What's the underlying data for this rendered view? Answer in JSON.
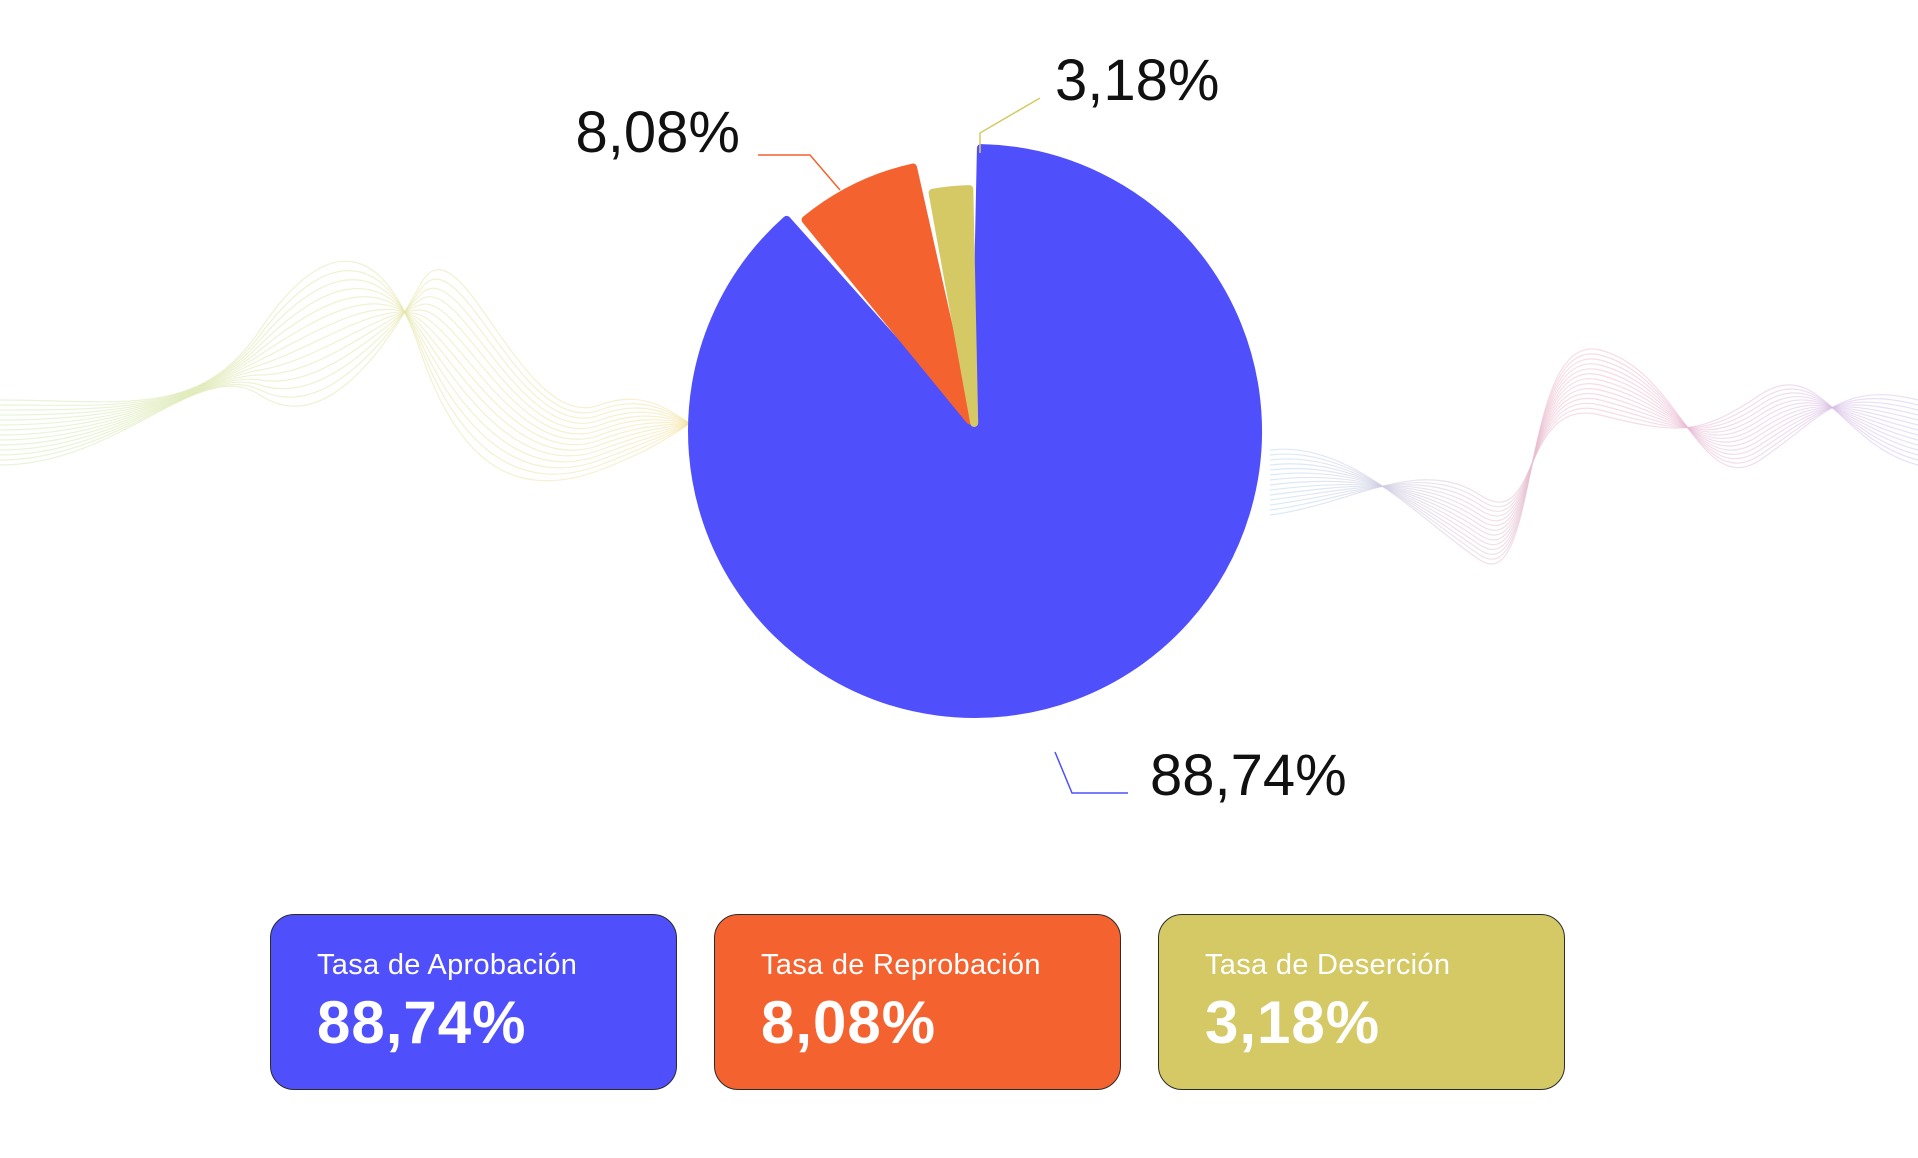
{
  "colors": {
    "aprobacion": "#4f50fb",
    "reprobacion": "#f4622f",
    "desercion": "#d5c965"
  },
  "chart_data": {
    "type": "pie",
    "slices": [
      {
        "label": "Tasa de Aprobación",
        "value": 88.74,
        "display": "88,74%",
        "color": "#4f50fb"
      },
      {
        "label": "Tasa de Reprobación",
        "value": 8.08,
        "display": "8,08%",
        "color": "#f4622f"
      },
      {
        "label": "Tasa de Deserción",
        "value": 3.18,
        "display": "3,18%",
        "color": "#d5c965"
      }
    ]
  },
  "cards": [
    {
      "label": "Tasa de Aprobación",
      "value": "88,74%"
    },
    {
      "label": "Tasa de Reprobación",
      "value": "8,08%"
    },
    {
      "label": "Tasa de Deserción",
      "value": "3,18%"
    }
  ]
}
